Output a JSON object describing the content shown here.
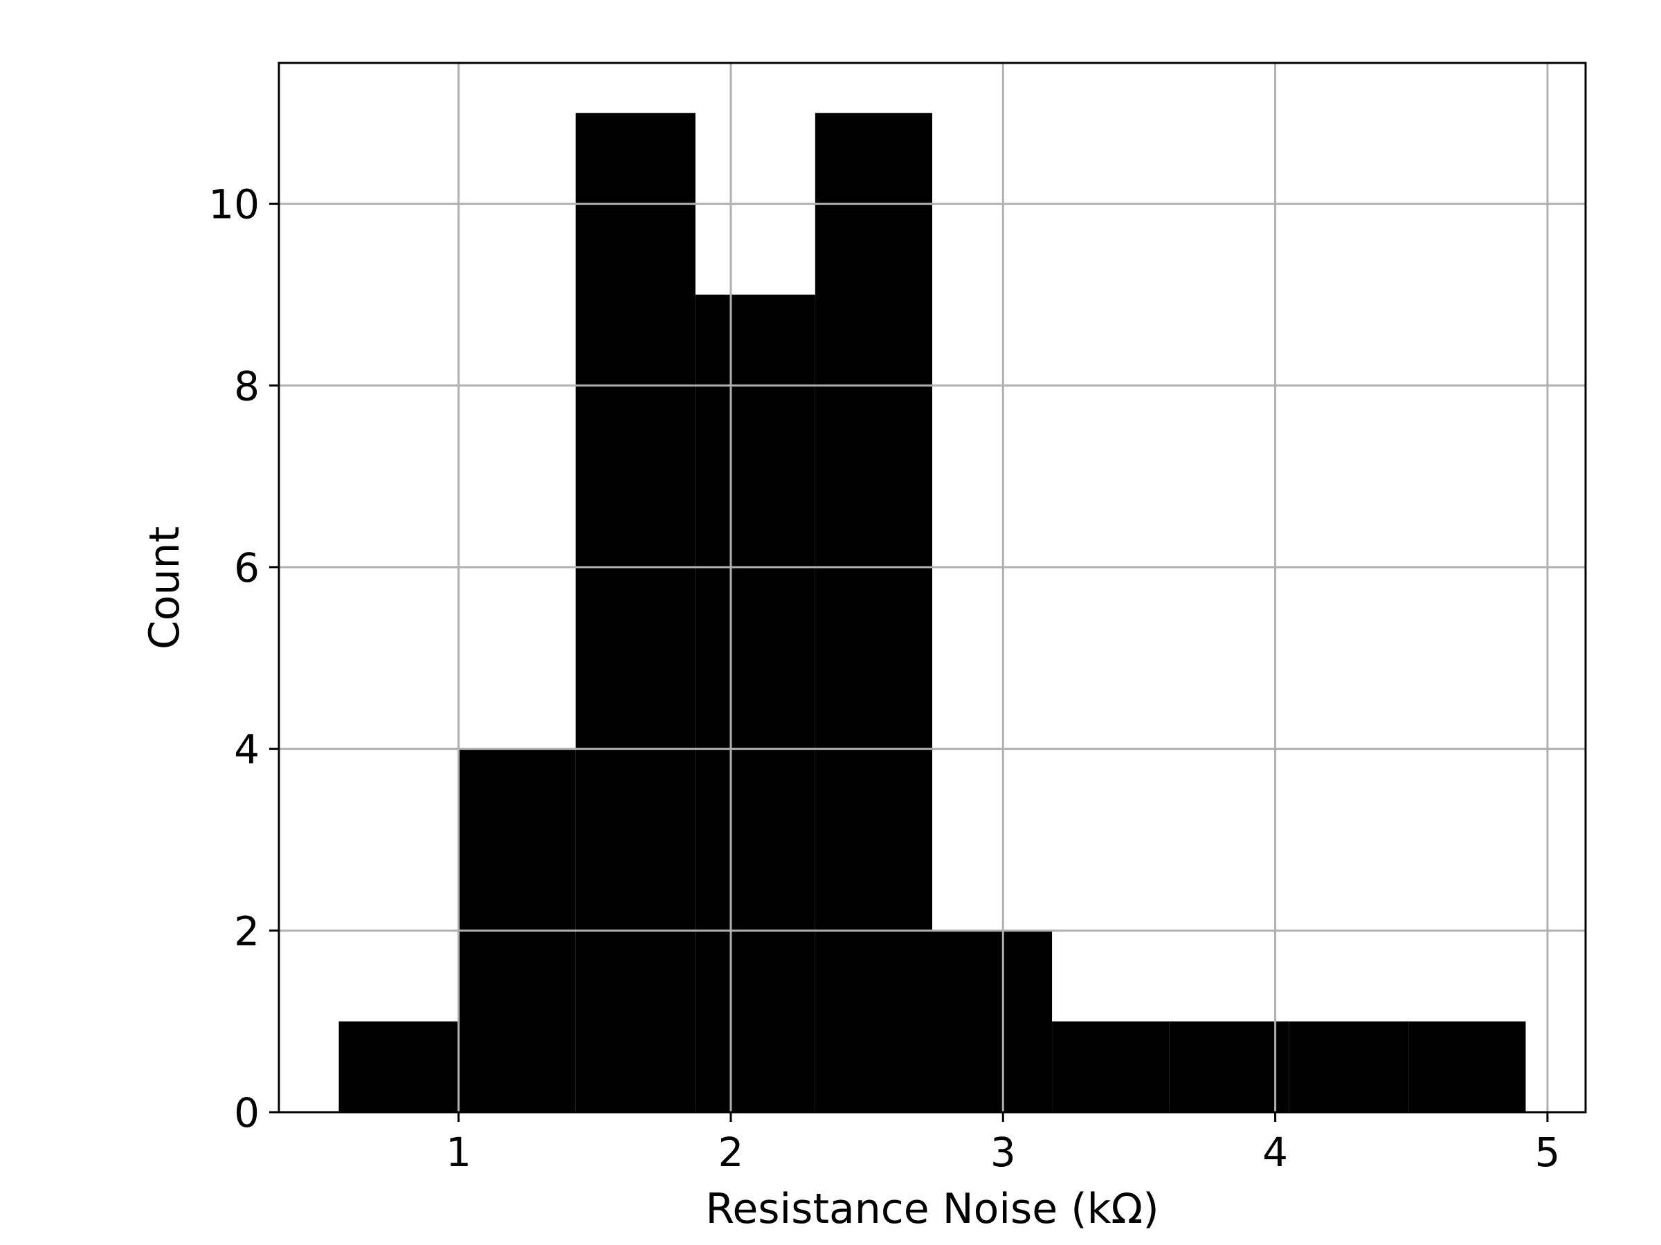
{
  "chart_data": {
    "type": "bar",
    "histogram": true,
    "xlabel": "Resistance Noise (kΩ)",
    "ylabel": "Count",
    "xlim": [
      0.34,
      5.14
    ],
    "ylim": [
      0,
      11.55
    ],
    "xticks": [
      1,
      2,
      3,
      4,
      5
    ],
    "yticks": [
      0,
      2,
      4,
      6,
      8,
      10
    ],
    "grid": true,
    "bar_color": "#000000",
    "bins": [
      {
        "x0": 0.56,
        "x1": 1.0,
        "count": 1
      },
      {
        "x0": 1.0,
        "x1": 1.43,
        "count": 4
      },
      {
        "x0": 1.43,
        "x1": 1.87,
        "count": 11
      },
      {
        "x0": 1.87,
        "x1": 2.31,
        "count": 9
      },
      {
        "x0": 2.31,
        "x1": 2.74,
        "count": 11
      },
      {
        "x0": 2.74,
        "x1": 3.18,
        "count": 2
      },
      {
        "x0": 3.18,
        "x1": 3.61,
        "count": 1
      },
      {
        "x0": 3.61,
        "x1": 4.05,
        "count": 1
      },
      {
        "x0": 4.05,
        "x1": 4.49,
        "count": 1
      },
      {
        "x0": 4.49,
        "x1": 4.92,
        "count": 1
      }
    ]
  }
}
